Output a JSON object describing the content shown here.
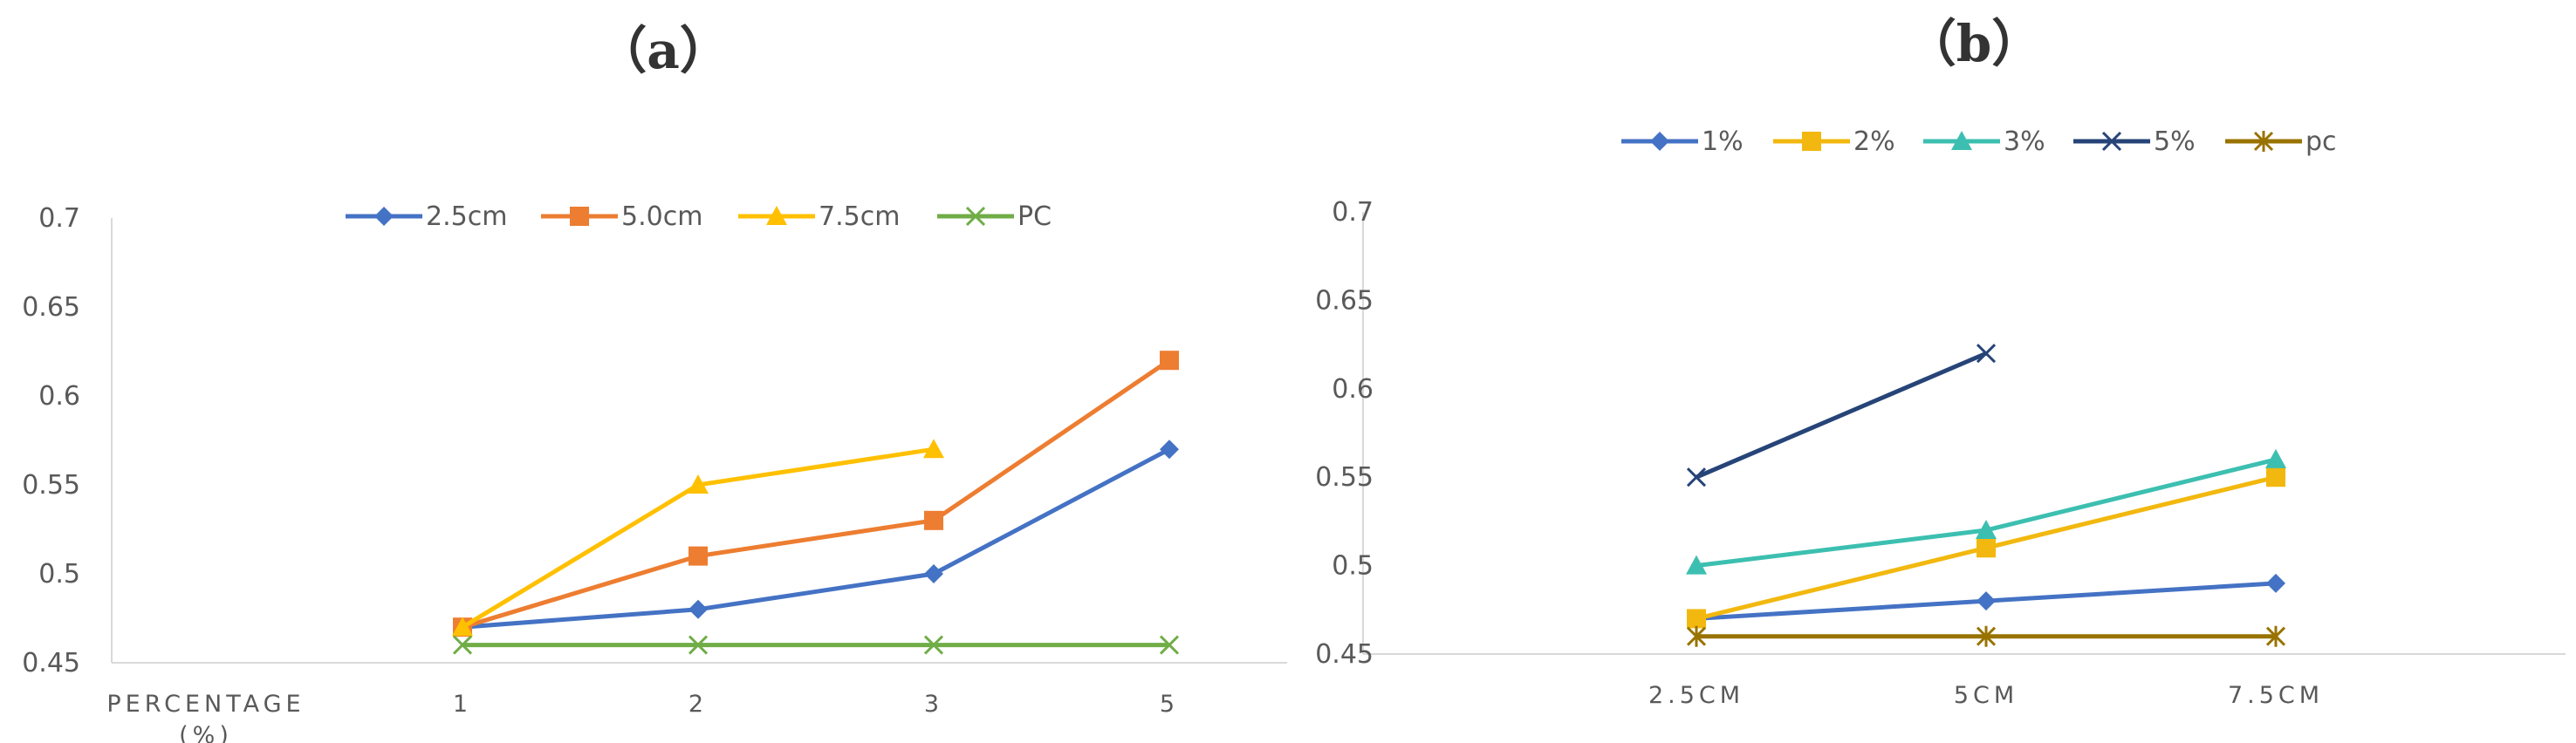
{
  "chart_data": [
    {
      "type": "line",
      "title": "（a）",
      "xlabel": "PERCENTAGE (%)",
      "ylabel": "",
      "categories": [
        "1",
        "2",
        "3",
        "5"
      ],
      "ylim": [
        0.45,
        0.7
      ],
      "yticks": [
        "0.45",
        "0.5",
        "0.55",
        "0.6",
        "0.65",
        "0.7"
      ],
      "grid": false,
      "legend_position": "top",
      "series": [
        {
          "name": "2.5cm",
          "values": [
            0.47,
            0.48,
            0.5,
            0.57
          ],
          "color": "#4472C4",
          "marker": "diamond"
        },
        {
          "name": "5.0cm",
          "values": [
            0.47,
            0.51,
            0.53,
            0.62
          ],
          "color": "#ED7D31",
          "marker": "square"
        },
        {
          "name": "7.5cm",
          "values": [
            0.47,
            0.55,
            0.57,
            null
          ],
          "color": "#FFC000",
          "marker": "triangle"
        },
        {
          "name": "PC",
          "values": [
            0.46,
            0.46,
            0.46,
            0.46
          ],
          "color": "#70AD47",
          "marker": "x"
        }
      ]
    },
    {
      "type": "line",
      "title": "（b）",
      "xlabel": "",
      "ylabel": "",
      "categories": [
        "2.5CM",
        "5CM",
        "7.5CM"
      ],
      "ylim": [
        0.45,
        0.7
      ],
      "yticks": [
        "0.45",
        "0.5",
        "0.55",
        "0.6",
        "0.65",
        "0.7"
      ],
      "grid": false,
      "legend_position": "top",
      "series": [
        {
          "name": "1%",
          "values": [
            0.47,
            0.48,
            0.49
          ],
          "color": "#4472C4",
          "marker": "diamond"
        },
        {
          "name": "2%",
          "values": [
            0.47,
            0.51,
            0.55
          ],
          "color": "#F2B80F",
          "marker": "square"
        },
        {
          "name": "3%",
          "values": [
            0.5,
            0.52,
            0.56
          ],
          "color": "#3CBFB0",
          "marker": "triangle"
        },
        {
          "name": "5%",
          "values": [
            0.55,
            0.62,
            null
          ],
          "color": "#264478",
          "marker": "x"
        },
        {
          "name": "pc",
          "values": [
            0.46,
            0.46,
            0.46
          ],
          "color": "#997300",
          "marker": "star"
        }
      ]
    }
  ]
}
